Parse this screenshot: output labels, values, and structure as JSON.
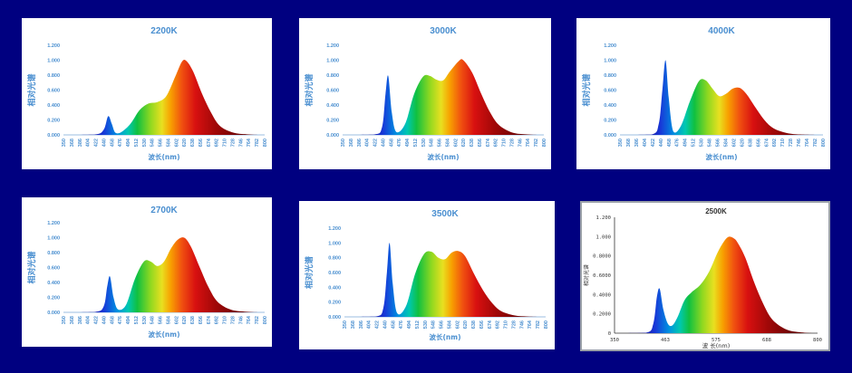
{
  "chart_data": [
    {
      "type": "area",
      "title": "2200K",
      "xlabel": "波长(nm)",
      "ylabel": "相对光谱",
      "xlim": [
        350,
        800
      ],
      "ylim": [
        0,
        1.2
      ],
      "yticks": [
        "0.000",
        "0.200",
        "0.400",
        "0.600",
        "0.800",
        "1.000",
        "1.200"
      ],
      "xticks": [
        "350",
        "368",
        "386",
        "404",
        "422",
        "440",
        "458",
        "476",
        "494",
        "512",
        "530",
        "548",
        "566",
        "584",
        "602",
        "620",
        "638",
        "656",
        "674",
        "692",
        "710",
        "728",
        "746",
        "764",
        "782",
        "800"
      ],
      "series": [
        {
          "x": [
            350,
            420,
            440,
            450,
            458,
            466,
            480,
            500,
            520,
            540,
            560,
            580,
            600,
            615,
            625,
            640,
            660,
            680,
            700,
            730,
            760,
            790
          ],
          "y": [
            0,
            0.005,
            0.07,
            0.25,
            0.15,
            0.03,
            0.04,
            0.15,
            0.33,
            0.42,
            0.44,
            0.52,
            0.78,
            0.98,
            0.99,
            0.85,
            0.55,
            0.3,
            0.12,
            0.03,
            0.008,
            0
          ]
        }
      ]
    },
    {
      "type": "area",
      "title": "3000K",
      "xlabel": "波长(nm)",
      "ylabel": "相对光谱",
      "xlim": [
        350,
        800
      ],
      "ylim": [
        0,
        1.2
      ],
      "yticks": [
        "0.000",
        "0.200",
        "0.400",
        "0.600",
        "0.800",
        "1.000",
        "1.200"
      ],
      "xticks": [
        "350",
        "368",
        "386",
        "404",
        "422",
        "440",
        "458",
        "476",
        "494",
        "512",
        "530",
        "548",
        "566",
        "584",
        "602",
        "620",
        "638",
        "656",
        "674",
        "692",
        "710",
        "728",
        "746",
        "764",
        "782",
        "800"
      ],
      "series": [
        {
          "x": [
            350,
            420,
            438,
            446,
            452,
            460,
            470,
            490,
            510,
            530,
            545,
            560,
            575,
            590,
            610,
            620,
            640,
            660,
            680,
            700,
            730,
            760,
            790
          ],
          "y": [
            0,
            0.005,
            0.1,
            0.55,
            0.79,
            0.3,
            0.04,
            0.15,
            0.55,
            0.78,
            0.79,
            0.74,
            0.73,
            0.85,
            0.99,
            1.0,
            0.83,
            0.55,
            0.3,
            0.13,
            0.03,
            0.008,
            0
          ]
        }
      ]
    },
    {
      "type": "area",
      "title": "4000K",
      "xlabel": "波长(nm)",
      "ylabel": "相对光谱",
      "xlim": [
        350,
        800
      ],
      "ylim": [
        0,
        1.2
      ],
      "yticks": [
        "0.000",
        "0.200",
        "0.400",
        "0.600",
        "0.800",
        "1.000",
        "1.200"
      ],
      "xticks": [
        "350",
        "368",
        "386",
        "404",
        "422",
        "440",
        "458",
        "476",
        "494",
        "512",
        "530",
        "548",
        "566",
        "584",
        "602",
        "620",
        "638",
        "656",
        "674",
        "692",
        "710",
        "728",
        "746",
        "764",
        "782",
        "800"
      ],
      "series": [
        {
          "x": [
            350,
            420,
            436,
            444,
            451,
            458,
            468,
            485,
            505,
            525,
            540,
            555,
            570,
            585,
            600,
            615,
            630,
            650,
            670,
            690,
            720,
            750,
            790
          ],
          "y": [
            0,
            0.005,
            0.15,
            0.6,
            1.0,
            0.5,
            0.05,
            0.12,
            0.45,
            0.72,
            0.73,
            0.62,
            0.52,
            0.55,
            0.62,
            0.63,
            0.55,
            0.37,
            0.2,
            0.09,
            0.025,
            0.006,
            0
          ]
        }
      ]
    },
    {
      "type": "area",
      "title": "2700K",
      "xlabel": "波长(nm)",
      "ylabel": "相对光谱",
      "xlim": [
        350,
        800
      ],
      "ylim": [
        0,
        1.2
      ],
      "yticks": [
        "0.000",
        "0.200",
        "0.400",
        "0.600",
        "0.800",
        "1.000",
        "1.200"
      ],
      "xticks": [
        "350",
        "368",
        "386",
        "404",
        "422",
        "440",
        "458",
        "476",
        "494",
        "512",
        "530",
        "548",
        "566",
        "584",
        "602",
        "620",
        "638",
        "656",
        "674",
        "692",
        "710",
        "728",
        "746",
        "764",
        "782",
        "800"
      ],
      "series": [
        {
          "x": [
            350,
            420,
            440,
            448,
            454,
            462,
            472,
            490,
            510,
            530,
            545,
            560,
            575,
            590,
            605,
            620,
            635,
            655,
            675,
            695,
            725,
            760,
            790
          ],
          "y": [
            0,
            0.005,
            0.08,
            0.35,
            0.48,
            0.2,
            0.04,
            0.1,
            0.45,
            0.68,
            0.68,
            0.62,
            0.68,
            0.85,
            0.97,
            1.0,
            0.88,
            0.6,
            0.33,
            0.14,
            0.035,
            0.008,
            0
          ]
        }
      ]
    },
    {
      "type": "area",
      "title": "3500K",
      "xlabel": "波长(nm)",
      "ylabel": "相对光谱",
      "xlim": [
        350,
        800
      ],
      "ylim": [
        0,
        1.2
      ],
      "yticks": [
        "0.000",
        "0.200",
        "0.400",
        "0.600",
        "0.800",
        "1.000",
        "1.200"
      ],
      "xticks": [
        "350",
        "368",
        "386",
        "404",
        "422",
        "440",
        "458",
        "476",
        "494",
        "512",
        "530",
        "548",
        "566",
        "584",
        "602",
        "620",
        "638",
        "656",
        "674",
        "692",
        "710",
        "728",
        "746",
        "764",
        "782",
        "800"
      ],
      "series": [
        {
          "x": [
            350,
            420,
            437,
            445,
            451,
            458,
            468,
            488,
            508,
            528,
            545,
            560,
            575,
            590,
            605,
            620,
            640,
            660,
            680,
            700,
            730,
            760,
            790
          ],
          "y": [
            0,
            0.005,
            0.12,
            0.6,
            1.0,
            0.45,
            0.05,
            0.15,
            0.58,
            0.85,
            0.88,
            0.8,
            0.78,
            0.87,
            0.89,
            0.82,
            0.58,
            0.36,
            0.19,
            0.08,
            0.02,
            0.005,
            0
          ]
        }
      ]
    },
    {
      "type": "area",
      "title": "2500K",
      "xlabel": "波 长(nm)",
      "ylabel": "相对光谱",
      "xlim": [
        350,
        800
      ],
      "ylim": [
        0,
        1.2
      ],
      "yticks": [
        "0",
        "0.2000",
        "0.4000",
        "0.6000",
        "0.8000",
        "1.000",
        "1.200"
      ],
      "xticks": [
        "350",
        "463",
        "575",
        "688",
        "800"
      ],
      "series": [
        {
          "x": [
            350,
            420,
            436,
            444,
            450,
            458,
            468,
            478,
            490,
            505,
            520,
            540,
            560,
            580,
            600,
            615,
            625,
            640,
            660,
            680,
            700,
            730,
            760,
            790
          ],
          "y": [
            0,
            0.005,
            0.1,
            0.38,
            0.46,
            0.25,
            0.1,
            0.08,
            0.17,
            0.34,
            0.42,
            0.5,
            0.64,
            0.85,
            0.99,
            0.98,
            0.92,
            0.78,
            0.52,
            0.3,
            0.14,
            0.04,
            0.01,
            0
          ]
        }
      ]
    }
  ]
}
